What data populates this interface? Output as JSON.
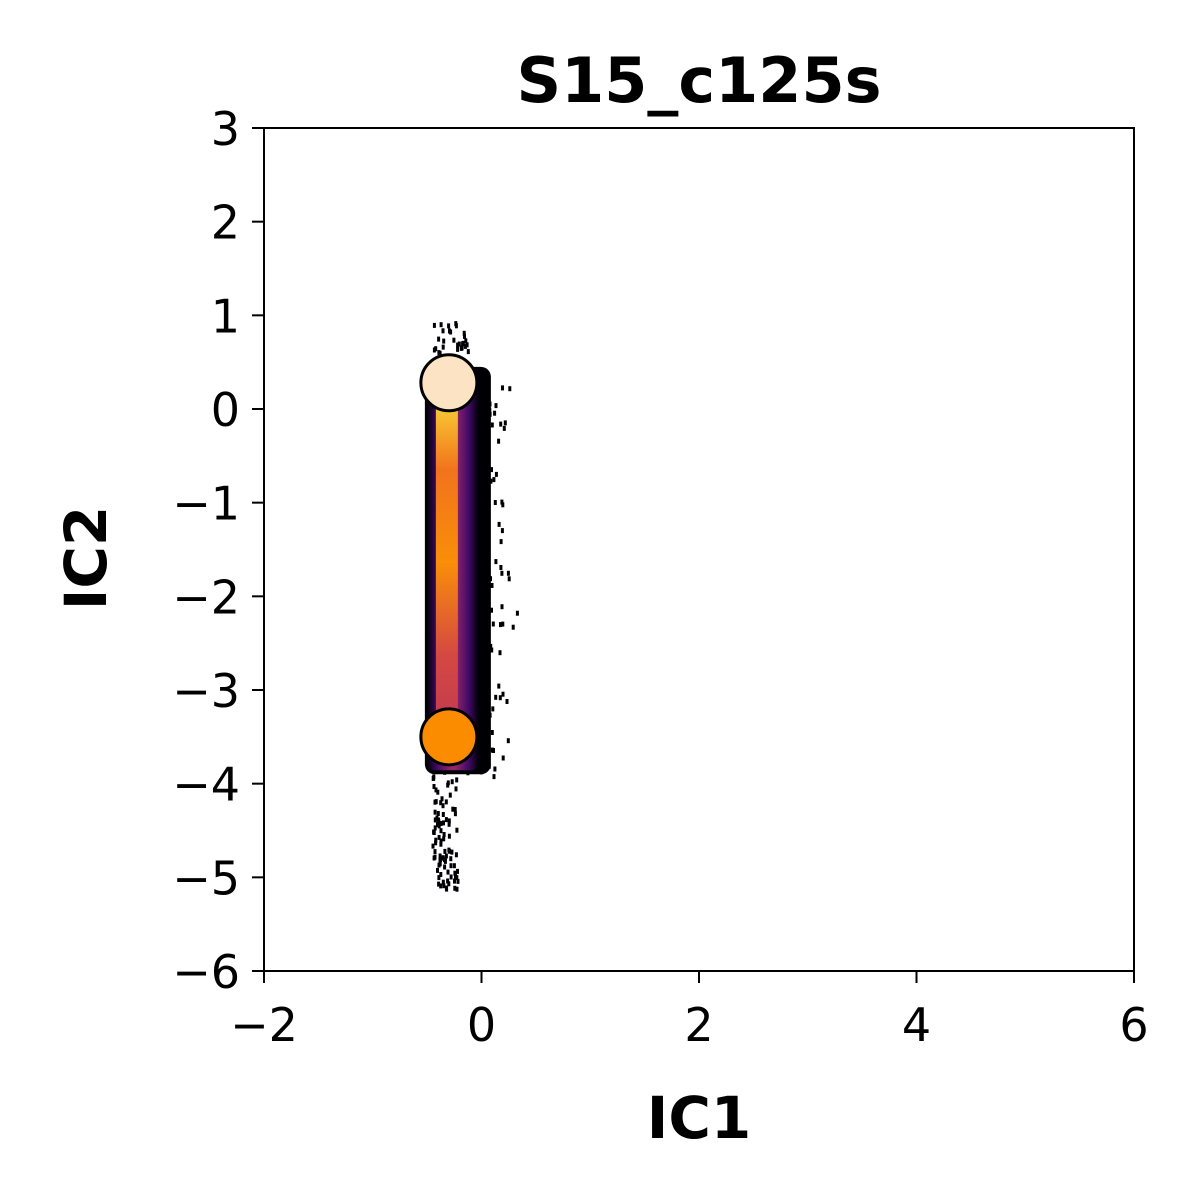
{
  "chart_data": {
    "type": "heatmap",
    "title": "S15_c125s",
    "xlabel": "IC1",
    "ylabel": "IC2",
    "xlim": [
      -2,
      6
    ],
    "ylim": [
      -6,
      3
    ],
    "x_ticks": [
      -2,
      0,
      2,
      4,
      6
    ],
    "y_ticks": [
      -6,
      -5,
      -4,
      -3,
      -2,
      -1,
      0,
      1,
      2,
      3
    ],
    "x_tick_labels": [
      "−2",
      "0",
      "2",
      "4",
      "6"
    ],
    "y_tick_labels": [
      "−6",
      "−5",
      "−4",
      "−3",
      "−2",
      "−1",
      "0",
      "1",
      "2",
      "3"
    ],
    "colormap": "inferno",
    "density_cloud": {
      "x_center": -0.3,
      "x_range": [
        -0.5,
        0.4
      ],
      "y_range": [
        -5.1,
        0.95
      ],
      "dense_y_range": [
        -3.9,
        0.45
      ]
    },
    "markers": [
      {
        "x": -0.3,
        "y": 0.28,
        "color": "#fce3c4"
      },
      {
        "x": -0.3,
        "y": -3.5,
        "color": "#fb8c00"
      }
    ]
  }
}
